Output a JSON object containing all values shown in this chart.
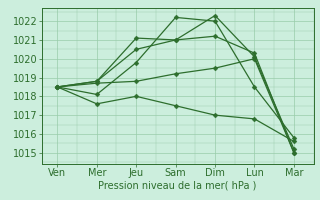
{
  "background_color": "#cceedd",
  "grid_color": "#99ccaa",
  "line_color": "#2d6e2d",
  "xlabel": "Pression niveau de la mer( hPa )",
  "x_labels": [
    "Ven",
    "Mer",
    "Jeu",
    "Sam",
    "Dim",
    "Lun",
    "Mar"
  ],
  "x_positions": [
    0,
    1,
    2,
    3,
    4,
    5,
    6
  ],
  "ylim": [
    1014.4,
    1022.7
  ],
  "yticks": [
    1015,
    1016,
    1017,
    1018,
    1019,
    1020,
    1021,
    1022
  ],
  "lines": [
    {
      "x": [
        0,
        1,
        2,
        3,
        4,
        5,
        6
      ],
      "y": [
        1018.5,
        1018.1,
        1019.8,
        1022.2,
        1022.0,
        1018.5,
        1015.8
      ]
    },
    {
      "x": [
        0,
        1,
        2,
        3,
        4,
        5,
        6
      ],
      "y": [
        1018.5,
        1018.8,
        1021.1,
        1021.0,
        1022.3,
        1020.1,
        1015.2
      ]
    },
    {
      "x": [
        0,
        1,
        2,
        3,
        4,
        5,
        6
      ],
      "y": [
        1018.5,
        1017.6,
        1018.0,
        1017.5,
        1017.0,
        1016.8,
        1015.6
      ]
    },
    {
      "x": [
        0,
        1,
        2,
        3,
        4,
        5,
        6
      ],
      "y": [
        1018.5,
        1018.8,
        1020.5,
        1021.0,
        1021.2,
        1020.3,
        1015.0
      ]
    },
    {
      "x": [
        0,
        1,
        2,
        3,
        4,
        5,
        6
      ],
      "y": [
        1018.5,
        1018.7,
        1018.8,
        1019.2,
        1019.5,
        1020.0,
        1015.0
      ]
    }
  ],
  "markersize": 2.5,
  "linewidth": 0.9,
  "xlabel_fontsize": 7,
  "tick_fontsize": 7
}
